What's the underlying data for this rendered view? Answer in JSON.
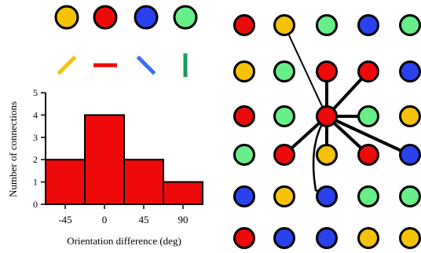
{
  "palette": {
    "yellow": "#f5c20a",
    "red": "#ee0a0a",
    "blue": "#2a41ee",
    "green": "#66ee88",
    "orientation_green": "#1f9a5a",
    "orientation_blue": "#3a6ff0"
  },
  "legend": {
    "items": [
      {
        "color_key": "yellow",
        "orientation": "-45"
      },
      {
        "color_key": "red",
        "orientation": "0"
      },
      {
        "color_key": "blue",
        "orientation": "45"
      },
      {
        "color_key": "green",
        "orientation": "90"
      }
    ]
  },
  "chart_data": {
    "type": "bar",
    "categories": [
      "-45",
      "0",
      "45",
      "90"
    ],
    "values": [
      2,
      4,
      2,
      1
    ],
    "xlabel": "Orientation difference (deg)",
    "ylabel": "Number of connections",
    "ylim": [
      0,
      5
    ],
    "yticks": [
      "0",
      "1",
      "2",
      "3",
      "4",
      "5"
    ],
    "bar_color": "#ee0a0a",
    "grid": false
  },
  "network": {
    "rows": [
      [
        "red",
        "yellow",
        "green",
        "blue",
        "green"
      ],
      [
        "yellow",
        "green",
        "red",
        "red",
        "blue"
      ],
      [
        "red",
        "green",
        "red",
        "green",
        "yellow"
      ],
      [
        "green",
        "red",
        "yellow",
        "red",
        "blue"
      ],
      [
        "blue",
        "yellow",
        "blue",
        "green",
        "green"
      ],
      [
        "red",
        "blue",
        "blue",
        "yellow",
        "yellow"
      ]
    ],
    "center": [
      2,
      2
    ],
    "connections": [
      [
        0,
        1
      ],
      [
        1,
        2
      ],
      [
        1,
        3
      ],
      [
        2,
        3
      ],
      [
        3,
        1
      ],
      [
        3,
        2
      ],
      [
        3,
        3
      ],
      [
        3,
        4
      ],
      [
        4,
        2
      ]
    ]
  }
}
